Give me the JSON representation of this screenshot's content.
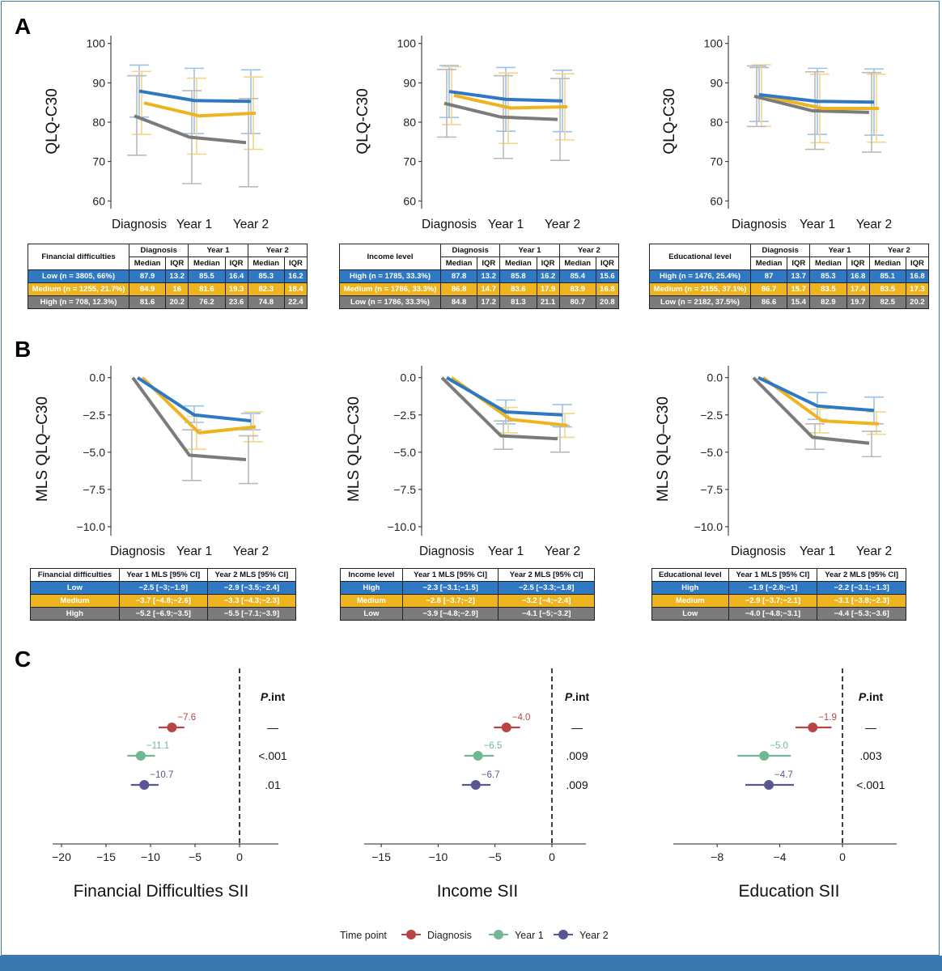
{
  "panels": {
    "a": "A",
    "b": "B",
    "c": "C"
  },
  "colors": {
    "blue": "#2f78c4",
    "yellow": "#eeb420",
    "gray": "#7b7b7b",
    "diag": "#b84545",
    "y1": "#6fb892",
    "y2": "#5a5593",
    "err_blue": "#9cc2e8",
    "err_yellow": "#f3d68a",
    "err_gray": "#b9b9b9"
  },
  "categories": [
    "Diagnosis",
    "Year 1",
    "Year 2"
  ],
  "chart_data": [
    {
      "id": "A1",
      "type": "line",
      "ylabel": "QLQ-C30",
      "ylim": [
        58,
        102
      ],
      "yticks": [
        60,
        70,
        80,
        90,
        100
      ],
      "series": [
        {
          "name": "Low",
          "color": "blue",
          "values": [
            87.9,
            85.5,
            85.3
          ],
          "err": [
            [
              81.3,
              94.5
            ],
            [
              77.1,
              93.7
            ],
            [
              77.1,
              93.3
            ]
          ]
        },
        {
          "name": "Medium",
          "color": "yellow",
          "values": [
            84.9,
            81.6,
            82.3
          ],
          "err": [
            [
              76.9,
              92.9
            ],
            [
              71.9,
              91.2
            ],
            [
              73.1,
              91.5
            ]
          ]
        },
        {
          "name": "High",
          "color": "gray",
          "values": [
            81.6,
            76.2,
            74.8
          ],
          "err": [
            [
              71.6,
              91.8
            ],
            [
              64.4,
              88.0
            ],
            [
              63.6,
              86.0
            ]
          ]
        }
      ]
    },
    {
      "id": "A2",
      "type": "line",
      "ylabel": "QLQ-C30",
      "ylim": [
        58,
        102
      ],
      "yticks": [
        60,
        70,
        80,
        90,
        100
      ],
      "series": [
        {
          "name": "High",
          "color": "blue",
          "values": [
            87.8,
            85.8,
            85.4
          ],
          "err": [
            [
              81.2,
              94.4
            ],
            [
              77.7,
              93.9
            ],
            [
              77.6,
              93.2
            ]
          ]
        },
        {
          "name": "Medium",
          "color": "yellow",
          "values": [
            86.8,
            83.6,
            83.9
          ],
          "err": [
            [
              79.4,
              94.1
            ],
            [
              74.6,
              92.5
            ],
            [
              75.5,
              92.3
            ]
          ]
        },
        {
          "name": "Low",
          "color": "gray",
          "values": [
            84.8,
            81.3,
            80.7
          ],
          "err": [
            [
              76.2,
              93.4
            ],
            [
              70.8,
              91.8
            ],
            [
              70.3,
              91.1
            ]
          ]
        }
      ]
    },
    {
      "id": "A3",
      "type": "line",
      "ylabel": "QLQ-C30",
      "ylim": [
        58,
        102
      ],
      "yticks": [
        60,
        70,
        80,
        90,
        100
      ],
      "series": [
        {
          "name": "High",
          "color": "blue",
          "values": [
            87,
            85.3,
            85.1
          ],
          "err": [
            [
              80.2,
              93.9
            ],
            [
              76.9,
              93.7
            ],
            [
              76.7,
              93.5
            ]
          ]
        },
        {
          "name": "Medium",
          "color": "yellow",
          "values": [
            86.7,
            83.5,
            83.5
          ],
          "err": [
            [
              78.9,
              94.6
            ],
            [
              74.8,
              92.2
            ],
            [
              74.9,
              92.2
            ]
          ]
        },
        {
          "name": "Low",
          "color": "gray",
          "values": [
            86.6,
            82.9,
            82.5
          ],
          "err": [
            [
              78.9,
              94.3
            ],
            [
              73.1,
              92.8
            ],
            [
              72.4,
              92.6
            ]
          ]
        }
      ]
    },
    {
      "id": "B1",
      "type": "line",
      "ylabel": "MLS QLQ–C30",
      "ylim": [
        -10.6,
        0.8
      ],
      "yticks": [
        0,
        -2.5,
        -5,
        -7.5,
        -10
      ],
      "yticklabels": [
        "0.0",
        "−2.5",
        "−5.0",
        "−7.5",
        "−10.0"
      ],
      "series": [
        {
          "name": "Low",
          "color": "blue",
          "values": [
            0,
            -2.5,
            -2.9
          ],
          "err": [
            null,
            [
              -3,
              -1.9
            ],
            [
              -3.5,
              -2.4
            ]
          ]
        },
        {
          "name": "Medium",
          "color": "yellow",
          "values": [
            0,
            -3.7,
            -3.3
          ],
          "err": [
            null,
            [
              -4.8,
              -2.6
            ],
            [
              -4.3,
              -2.3
            ]
          ]
        },
        {
          "name": "High",
          "color": "gray",
          "values": [
            0,
            -5.2,
            -5.5
          ],
          "err": [
            null,
            [
              -6.9,
              -3.5
            ],
            [
              -7.1,
              -3.9
            ]
          ]
        }
      ]
    },
    {
      "id": "B2",
      "type": "line",
      "ylabel": "MLS QLQ–C30",
      "ylim": [
        -10.6,
        0.8
      ],
      "yticks": [
        0,
        -2.5,
        -5,
        -7.5,
        -10
      ],
      "yticklabels": [
        "0.0",
        "−2.5",
        "−5.0",
        "−7.5",
        "−10.0"
      ],
      "series": [
        {
          "name": "High",
          "color": "blue",
          "values": [
            0,
            -2.3,
            -2.5
          ],
          "err": [
            null,
            [
              -3.1,
              -1.5
            ],
            [
              -3.3,
              -1.8
            ]
          ]
        },
        {
          "name": "Medium",
          "color": "yellow",
          "values": [
            0,
            -2.8,
            -3.2
          ],
          "err": [
            null,
            [
              -3.7,
              -2
            ],
            [
              -4,
              -2.4
            ]
          ]
        },
        {
          "name": "Low",
          "color": "gray",
          "values": [
            0,
            -3.9,
            -4.1
          ],
          "err": [
            null,
            [
              -4.8,
              -2.9
            ],
            [
              -5,
              -3.2
            ]
          ]
        }
      ]
    },
    {
      "id": "B3",
      "type": "line",
      "ylabel": "MLS QLQ–C30",
      "ylim": [
        -10.6,
        0.8
      ],
      "yticks": [
        0,
        -2.5,
        -5,
        -7.5,
        -10
      ],
      "yticklabels": [
        "0.0",
        "−2.5",
        "−5.0",
        "−7.5",
        "−10.0"
      ],
      "series": [
        {
          "name": "High",
          "color": "blue",
          "values": [
            0,
            -1.9,
            -2.2
          ],
          "err": [
            null,
            [
              -2.8,
              -1
            ],
            [
              -3.1,
              -1.3
            ]
          ]
        },
        {
          "name": "Medium",
          "color": "yellow",
          "values": [
            0,
            -2.9,
            -3.1
          ],
          "err": [
            null,
            [
              -3.7,
              -2.1
            ],
            [
              -3.8,
              -2.3
            ]
          ]
        },
        {
          "name": "Low",
          "color": "gray",
          "values": [
            0,
            -4.0,
            -4.4
          ],
          "err": [
            null,
            [
              -4.8,
              -3.1
            ],
            [
              -5.3,
              -3.6
            ]
          ]
        }
      ]
    },
    {
      "id": "C1",
      "type": "scatter",
      "xlabel": "Financial Difficulties SII",
      "xlim": [
        -21,
        4.5
      ],
      "xticks": [
        -20,
        -15,
        -10,
        -5,
        0
      ],
      "xticklabels": [
        "−20",
        "−15",
        "−10",
        "−5",
        "0"
      ],
      "points": [
        {
          "name": "Diagnosis",
          "color": "diag",
          "value": -7.6,
          "ci": [
            -9.1,
            -6.2
          ],
          "label": "−7.6",
          "p": "—"
        },
        {
          "name": "Year 1",
          "color": "y1",
          "value": -11.1,
          "ci": [
            -12.6,
            -9.5
          ],
          "label": "−11.1",
          "p": "<.001"
        },
        {
          "name": "Year 2",
          "color": "y2",
          "value": -10.7,
          "ci": [
            -12.2,
            -9.1
          ],
          "label": "−10.7",
          "p": ".01"
        }
      ]
    },
    {
      "id": "C2",
      "type": "scatter",
      "xlabel": "Income SII",
      "xlim": [
        -16.5,
        3
      ],
      "xticks": [
        -15,
        -10,
        -5,
        0
      ],
      "xticklabels": [
        "−15",
        "−10",
        "−5",
        "0"
      ],
      "points": [
        {
          "name": "Diagnosis",
          "color": "diag",
          "value": -4.0,
          "ci": [
            -5.1,
            -2.8
          ],
          "label": "−4.0",
          "p": "—"
        },
        {
          "name": "Year 1",
          "color": "y1",
          "value": -6.5,
          "ci": [
            -7.7,
            -5.1
          ],
          "label": "−6.5",
          "p": ".009"
        },
        {
          "name": "Year 2",
          "color": "y2",
          "value": -6.7,
          "ci": [
            -7.9,
            -5.4
          ],
          "label": "−6.7",
          "p": ".009"
        }
      ]
    },
    {
      "id": "C3",
      "type": "scatter",
      "xlabel": "Education SII",
      "xlim": [
        -10.8,
        3.4
      ],
      "xticks": [
        -8,
        -4,
        0
      ],
      "xticklabels": [
        "−8",
        "−4",
        "0"
      ],
      "points": [
        {
          "name": "Diagnosis",
          "color": "diag",
          "value": -1.9,
          "ci": [
            -3.0,
            -0.7
          ],
          "label": "−1.9",
          "p": "—"
        },
        {
          "name": "Year 1",
          "color": "y1",
          "value": -5.0,
          "ci": [
            -6.7,
            -3.3
          ],
          "label": "−5.0",
          "p": ".003"
        },
        {
          "name": "Year 2",
          "color": "y2",
          "value": -4.7,
          "ci": [
            -6.2,
            -3.1
          ],
          "label": "−4.7",
          "p": "<.001"
        }
      ]
    }
  ],
  "c_header": "P.int",
  "legend": {
    "title": "Time point",
    "items": [
      {
        "label": "Diagnosis",
        "color": "diag"
      },
      {
        "label": "Year 1",
        "color": "y1"
      },
      {
        "label": "Year 2",
        "color": "y2"
      }
    ]
  },
  "tables_a": [
    {
      "head": "Financial difficulties",
      "times": [
        "Diagnosis",
        "Year 1",
        "Year 2"
      ],
      "sub": [
        "Median",
        "IQR",
        "Median",
        "IQR",
        "Median",
        "IQR"
      ],
      "rows": [
        [
          "Low (n = 3805, 66%)",
          "87.9",
          "13.2",
          "85.5",
          "16.4",
          "85.3",
          "16.2"
        ],
        [
          "Medium (n = 1255, 21.7%)",
          "84.9",
          "16",
          "81.6",
          "19.3",
          "82.3",
          "18.4"
        ],
        [
          "High (n = 708, 12.3%)",
          "81.6",
          "20.2",
          "76.2",
          "23.6",
          "74.8",
          "22.4"
        ]
      ]
    },
    {
      "head": "Income level",
      "times": [
        "Diagnosis",
        "Year 1",
        "Year 2"
      ],
      "sub": [
        "Median",
        "IQR",
        "Median",
        "IQR",
        "Median",
        "IQR"
      ],
      "rows": [
        [
          "High (n = 1785, 33.3%)",
          "87.8",
          "13.2",
          "85.8",
          "16.2",
          "85.4",
          "15.6"
        ],
        [
          "Medium (n = 1786, 33.3%)",
          "86.8",
          "14.7",
          "83.6",
          "17.9",
          "83.9",
          "16.8"
        ],
        [
          "Low (n = 1786, 33.3%)",
          "84.8",
          "17.2",
          "81.3",
          "21.1",
          "80.7",
          "20.8"
        ]
      ]
    },
    {
      "head": "Educational level",
      "times": [
        "Diagnosis",
        "Year 1",
        "Year 2"
      ],
      "sub": [
        "Median",
        "IQR",
        "Median",
        "IQR",
        "Median",
        "IQR"
      ],
      "rows": [
        [
          "High (n = 1476, 25.4%)",
          "87",
          "13.7",
          "85.3",
          "16.8",
          "85.1",
          "16.8"
        ],
        [
          "Medium (n = 2155, 37.1%)",
          "86.7",
          "15.7",
          "83.5",
          "17.4",
          "83.5",
          "17.3"
        ],
        [
          "Low (n = 2182, 37.5%)",
          "86.6",
          "15.4",
          "82.9",
          "19.7",
          "82.5",
          "20.2"
        ]
      ]
    }
  ],
  "tables_b": [
    {
      "head": [
        "Financial difficulties",
        "Year 1 MLS [95% CI]",
        "Year 2 MLS [95% CI]"
      ],
      "rows": [
        [
          "Low",
          "−2.5 [−3;−1.9]",
          "−2.9 [−3.5;−2.4]"
        ],
        [
          "Medium",
          "−3.7 [−4.8;−2.6]",
          "−3.3 [−4.3;−2.3]"
        ],
        [
          "High",
          "−5.2 [−6.9;−3.5]",
          "−5.5 [−7.1;−3.9]"
        ]
      ]
    },
    {
      "head": [
        "Income level",
        "Year 1 MLS [95% CI]",
        "Year 2 MLS [95% CI]"
      ],
      "rows": [
        [
          "High",
          "−2.3 [−3.1;−1.5]",
          "−2.5 [−3.3;−1.8]"
        ],
        [
          "Medium",
          "−2.8 [−3.7;−2]",
          "−3.2 [−4;−2.4]"
        ],
        [
          "Low",
          "−3.9 [−4.8;−2.9]",
          "−4.1 [−5;−3.2]"
        ]
      ]
    },
    {
      "head": [
        "Educational level",
        "Year 1 MLS [95% CI]",
        "Year 2 MLS [95% CI]"
      ],
      "rows": [
        [
          "High",
          "−1.9 [−2.8;−1]",
          "−2.2 [−3.1;−1.3]"
        ],
        [
          "Medium",
          "−2.9 [−3.7;−2.1]",
          "−3.1 [−3.8;−2.3]"
        ],
        [
          "Low",
          "−4.0 [−4.8;−3.1]",
          "−4.4 [−5.3;−3.6]"
        ]
      ]
    }
  ]
}
